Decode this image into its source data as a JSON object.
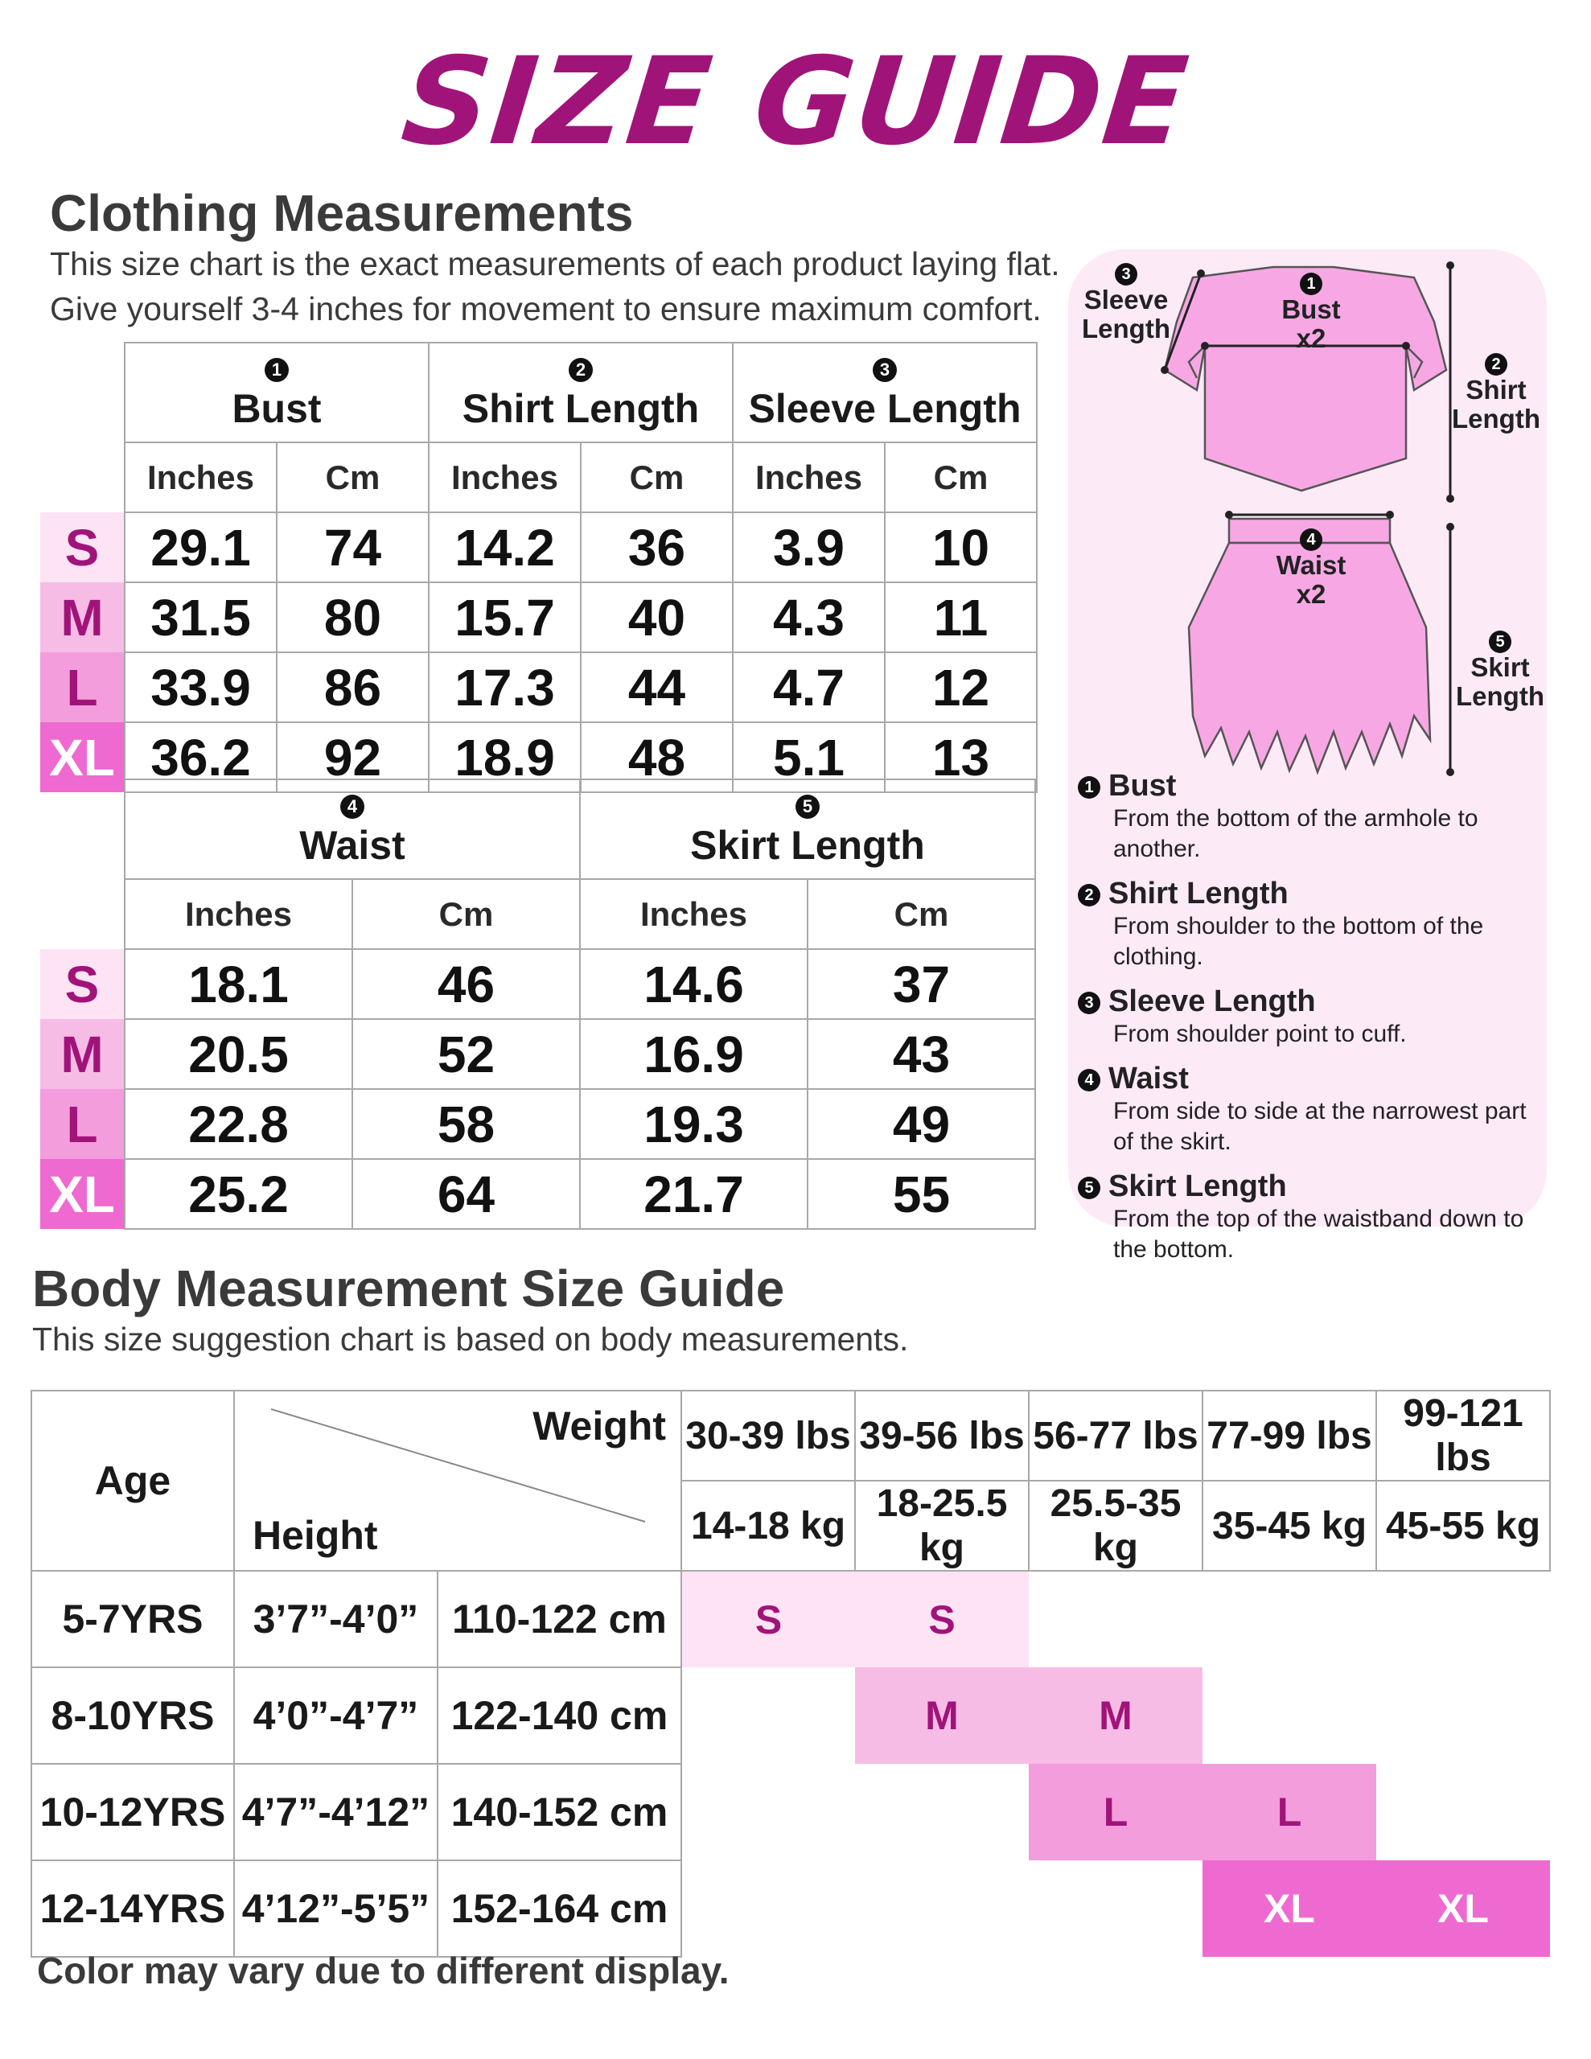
{
  "title": "SIZE GUIDE",
  "clothing": {
    "heading": "Clothing Measurements",
    "sub1": "This size chart is the exact measurements of each product laying flat.",
    "sub2": "Give yourself 3-4 inches for movement to ensure maximum comfort.",
    "top_table": {
      "groups": [
        {
          "num": "1",
          "label": "Bust"
        },
        {
          "num": "2",
          "label": "Shirt Length"
        },
        {
          "num": "3",
          "label": "Sleeve Length"
        }
      ],
      "units": [
        "Inches",
        "Cm",
        "Inches",
        "Cm",
        "Inches",
        "Cm"
      ],
      "rows": [
        {
          "size": "S",
          "values": [
            "29.1",
            "74",
            "14.2",
            "36",
            "3.9",
            "10"
          ]
        },
        {
          "size": "M",
          "values": [
            "31.5",
            "80",
            "15.7",
            "40",
            "4.3",
            "11"
          ]
        },
        {
          "size": "L",
          "values": [
            "33.9",
            "86",
            "17.3",
            "44",
            "4.7",
            "12"
          ]
        },
        {
          "size": "XL",
          "values": [
            "36.2",
            "92",
            "18.9",
            "48",
            "5.1",
            "13"
          ]
        }
      ]
    },
    "bottom_table": {
      "groups": [
        {
          "num": "4",
          "label": "Waist"
        },
        {
          "num": "5",
          "label": "Skirt Length"
        }
      ],
      "units": [
        "Inches",
        "Cm",
        "Inches",
        "Cm"
      ],
      "rows": [
        {
          "size": "S",
          "values": [
            "18.1",
            "46",
            "14.6",
            "37"
          ]
        },
        {
          "size": "M",
          "values": [
            "20.5",
            "52",
            "16.9",
            "43"
          ]
        },
        {
          "size": "L",
          "values": [
            "22.8",
            "58",
            "19.3",
            "49"
          ]
        },
        {
          "size": "XL",
          "values": [
            "25.2",
            "64",
            "21.7",
            "55"
          ]
        }
      ]
    }
  },
  "diagram": {
    "labels": {
      "sleeve_length": [
        "3",
        "Sleeve",
        "Length"
      ],
      "bust": [
        "1",
        "Bust",
        "x2"
      ],
      "shirt_length": [
        "2",
        "Shirt",
        "Length"
      ],
      "waist": [
        "4",
        "Waist",
        "x2"
      ],
      "skirt_length": [
        "5",
        "Skirt",
        "Length"
      ]
    },
    "definitions": [
      {
        "num": "1",
        "term": "Bust",
        "desc": "From the bottom of the armhole to another."
      },
      {
        "num": "2",
        "term": "Shirt Length",
        "desc": "From shoulder to the bottom of the clothing."
      },
      {
        "num": "3",
        "term": "Sleeve Length",
        "desc": "From shoulder point to cuff."
      },
      {
        "num": "4",
        "term": "Waist",
        "desc": "From side to side at the narrowest part of the skirt."
      },
      {
        "num": "5",
        "term": "Skirt Length",
        "desc": "From the top of the waistband down to the bottom."
      }
    ]
  },
  "body": {
    "heading": "Body Measurement Size Guide",
    "sub": "This size suggestion chart is based on body measurements.",
    "age_label": "Age",
    "weight_label": "Weight",
    "height_label": "Height",
    "weights_lbs": [
      "30-39 lbs",
      "39-56 lbs",
      "56-77 lbs",
      "77-99 lbs",
      "99-121 lbs"
    ],
    "weights_kg": [
      "14-18 kg",
      "18-25.5 kg",
      "25.5-35 kg",
      "35-45 kg",
      "45-55 kg"
    ],
    "rows": [
      {
        "age": "5-7YRS",
        "height_in": "3’7”-4’0”",
        "height_cm": "110-122 cm",
        "sizes": [
          "S",
          "S",
          "",
          "",
          ""
        ]
      },
      {
        "age": "8-10YRS",
        "height_in": "4’0”-4’7”",
        "height_cm": "122-140 cm",
        "sizes": [
          "",
          "M",
          "M",
          "",
          ""
        ]
      },
      {
        "age": "10-12YRS",
        "height_in": "4’7”-4’12”",
        "height_cm": "140-152 cm",
        "sizes": [
          "",
          "",
          "L",
          "L",
          ""
        ]
      },
      {
        "age": "12-14YRS",
        "height_in": "4’12”-5’5”",
        "height_cm": "152-164 cm",
        "sizes": [
          "",
          "",
          "",
          "XL",
          "XL"
        ]
      }
    ]
  },
  "footer": "Color may vary due to different display.",
  "colors": {
    "accent": "#a0147a",
    "S": "#fde3f4",
    "M": "#f7bce6",
    "L": "#f39ddc",
    "XL": "#ee6ad0",
    "garment": "#f7a8e4"
  }
}
